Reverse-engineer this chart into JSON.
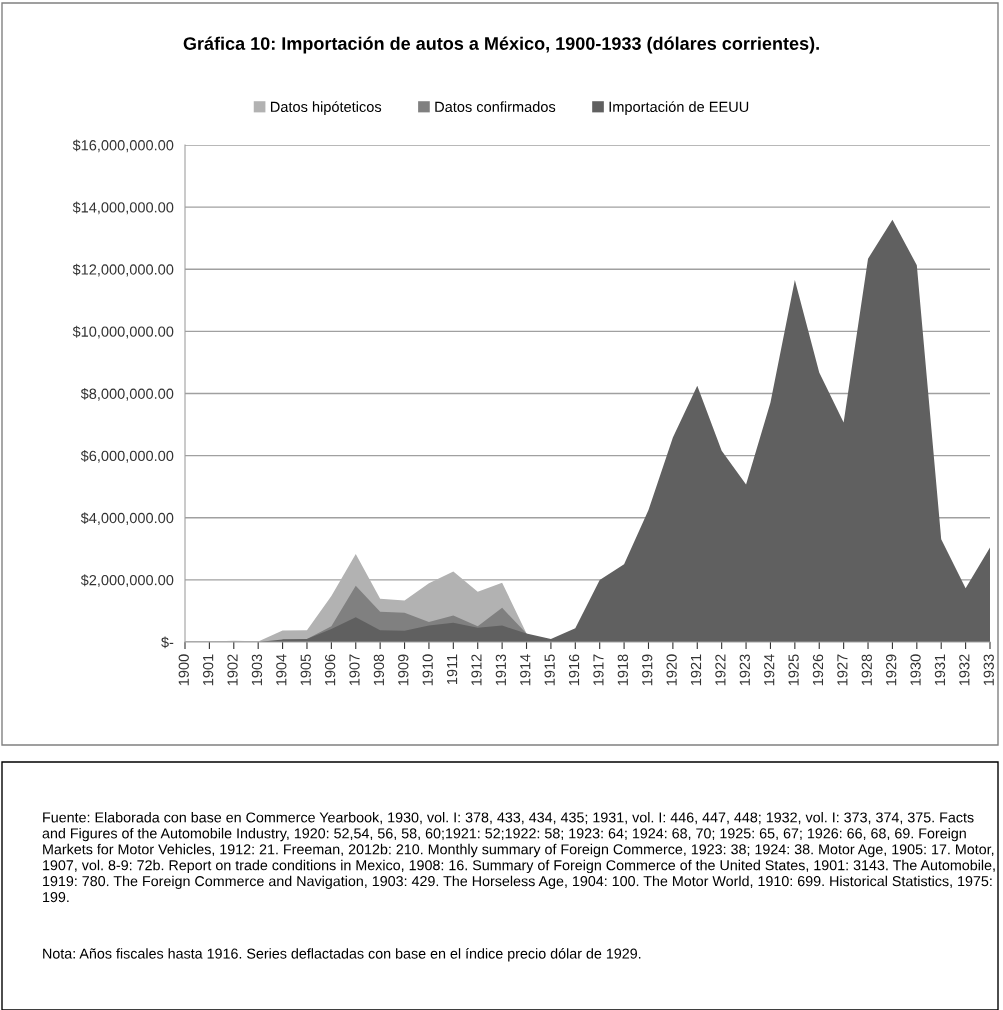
{
  "chart_data": {
    "type": "area",
    "title": "Gráfica 10: Importación de autos a México, 1900-1933 (dólares corrientes).",
    "categories": [
      "1900",
      "1901",
      "1902",
      "1903",
      "1904",
      "1905",
      "1906",
      "1907",
      "1908",
      "1909",
      "1910",
      "1911",
      "1912",
      "1913",
      "1914",
      "1915",
      "1916",
      "1917",
      "1918",
      "1919",
      "1920",
      "1921",
      "1922",
      "1923",
      "1924",
      "1925",
      "1926",
      "1927",
      "1928",
      "1929",
      "1930",
      "1931",
      "1932",
      "1933"
    ],
    "series": [
      {
        "name": "Datos hipóteticos",
        "color": "#b2b2b2",
        "values": [
          20000,
          20000,
          40000,
          20000,
          370000,
          380000,
          1480000,
          2830000,
          1390000,
          1340000,
          1890000,
          2270000,
          1620000,
          1910000,
          270000,
          null,
          null,
          null,
          null,
          null,
          null,
          null,
          null,
          null,
          null,
          null,
          null,
          null,
          null,
          null,
          null,
          null,
          null,
          null
        ]
      },
      {
        "name": "Datos confirmados",
        "color": "#808080",
        "values": [
          null,
          null,
          null,
          null,
          100000,
          100000,
          510000,
          1810000,
          970000,
          940000,
          640000,
          850000,
          510000,
          1100000,
          270000,
          null,
          null,
          null,
          null,
          null,
          null,
          null,
          null,
          null,
          null,
          null,
          null,
          null,
          null,
          null,
          null,
          null,
          null,
          null
        ]
      },
      {
        "name": "Importación de EEUU",
        "color": "#606060",
        "values": [
          0,
          0,
          0,
          0,
          80000,
          100000,
          420000,
          800000,
          380000,
          360000,
          530000,
          620000,
          460000,
          530000,
          270000,
          100000,
          440000,
          2000000,
          2500000,
          4250000,
          6580000,
          8250000,
          6160000,
          5070000,
          7710000,
          11650000,
          8680000,
          7070000,
          12340000,
          13590000,
          12130000,
          3310000,
          1730000,
          3040000
        ]
      }
    ],
    "ylim": [
      0,
      16000000
    ],
    "yticks": [
      {
        "value": 0,
        "label": "$-"
      },
      {
        "value": 2000000,
        "label": "$2,000,000.00"
      },
      {
        "value": 4000000,
        "label": "$4,000,000.00"
      },
      {
        "value": 6000000,
        "label": "$6,000,000.00"
      },
      {
        "value": 8000000,
        "label": "$8,000,000.00"
      },
      {
        "value": 10000000,
        "label": "$10,000,000.00"
      },
      {
        "value": 12000000,
        "label": "$12,000,000.00"
      },
      {
        "value": 14000000,
        "label": "$14,000,000.00"
      },
      {
        "value": 16000000,
        "label": "$16,000,000.00"
      }
    ],
    "grid": "y",
    "legend": "top",
    "annotations": [
      "Fuente: Elaborada con base en Commerce Yearbook, 1930, vol. I: 378, 433, 434, 435; 1931, vol. I: 446, 447, 448; 1932, vol. I: 373, 374, 375. Facts and Figures of the Automobile Industry, 1920: 52,54, 56, 58, 60;1921: 52;1922: 58; 1923: 64; 1924: 68, 70; 1925: 65, 67; 1926: 66, 68, 69. Foreign Markets for Motor Vehicles, 1912: 21. Freeman, 2012b: 210. Monthly summary of Foreign Commerce, 1923: 38; 1924: 38. Motor Age, 1905: 17. Motor, 1907, vol. 8-9: 72b. Report on trade conditions in Mexico, 1908: 16. Summary of Foreign Commerce of the United States, 1901: 3143. The Automobile, 1919: 780. The Foreign Commerce and Navigation, 1903: 429. The Horseless Age, 1904: 100. The Motor World, 1910: 699. Historical Statistics, 1975: 199.",
      "Nota: Años fiscales hasta 1916. Series deflactadas con base en el índice precio dólar de 1929."
    ]
  }
}
